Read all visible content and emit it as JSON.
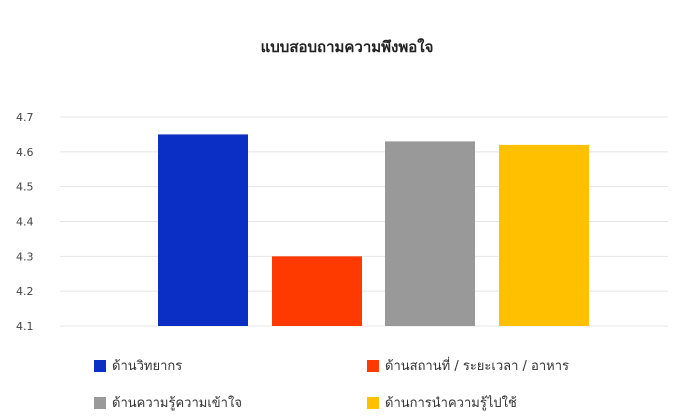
{
  "chart_data": {
    "type": "bar",
    "title": "แบบสอบถามความพึงพอใจ",
    "xlabel": "",
    "ylabel": "",
    "ylim": [
      4.1,
      4.7
    ],
    "yticks": [
      "4.1",
      "4.2",
      "4.3",
      "4.4",
      "4.5",
      "4.6",
      "4.7"
    ],
    "grid": true,
    "legend_position": "bottom",
    "series": [
      {
        "name": "ด้านวิทยากร",
        "value": 4.65,
        "color": "#0b2fc4"
      },
      {
        "name": "ด้านสถานที่ / ระยะเวลา / อาหาร",
        "value": 4.3,
        "color": "#ff3a00"
      },
      {
        "name": "ด้านความรู้ความเข้าใจ",
        "value": 4.63,
        "color": "#999999"
      },
      {
        "name": "ด้านการนำความรู้ไปใช้",
        "value": 4.62,
        "color": "#ffc000"
      }
    ]
  }
}
